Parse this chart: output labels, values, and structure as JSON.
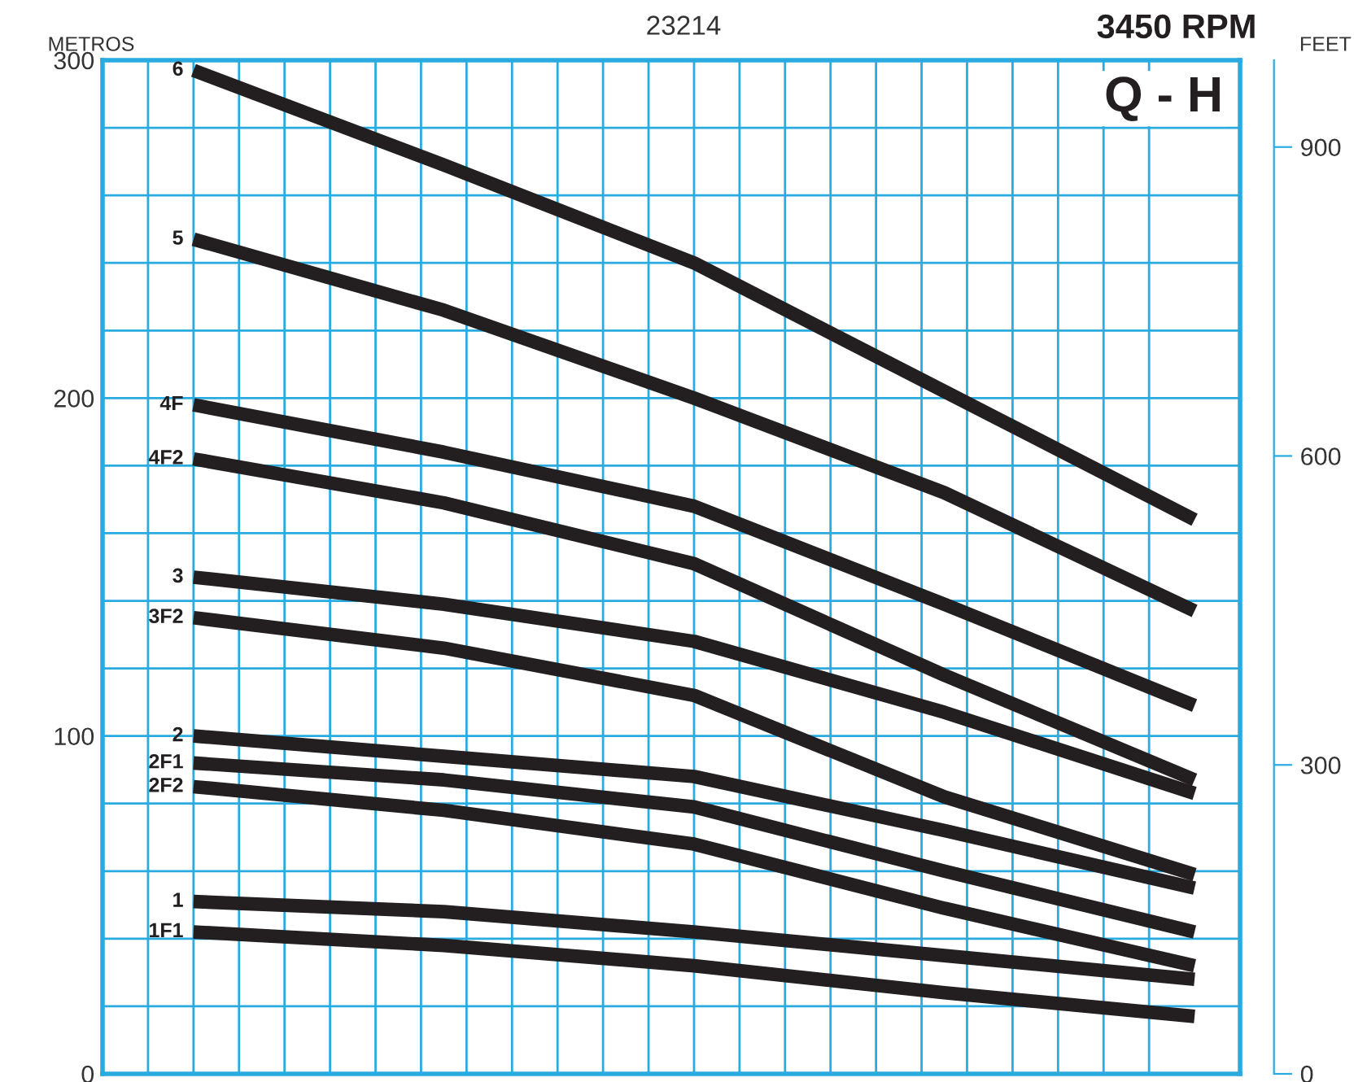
{
  "chart_data": {
    "type": "line",
    "title": "3450 RPM",
    "subtitle": "23214",
    "annotations": [
      "Q - H"
    ],
    "ylabel": "METROS",
    "y2label": "FEET",
    "categories": [
      null,
      null,
      null,
      null,
      null
    ],
    "series": [
      {
        "name": "6",
        "color": "#231f20",
        "values": [
          297,
          269,
          240,
          202,
          164
        ]
      },
      {
        "name": "5",
        "color": "#231f20",
        "values": [
          247,
          226,
          200,
          172,
          137
        ]
      },
      {
        "name": "4F",
        "color": "#231f20",
        "values": [
          198,
          184,
          168,
          139,
          109
        ]
      },
      {
        "name": "4F2",
        "color": "#231f20",
        "values": [
          182,
          169,
          151,
          118,
          87
        ]
      },
      {
        "name": "3",
        "color": "#231f20",
        "values": [
          147,
          139,
          128,
          107,
          83
        ]
      },
      {
        "name": "3F2",
        "color": "#231f20",
        "values": [
          135,
          126,
          112,
          82,
          59
        ]
      },
      {
        "name": "2",
        "color": "#231f20",
        "values": [
          100,
          94,
          88,
          72,
          55
        ]
      },
      {
        "name": "2F1",
        "color": "#231f20",
        "values": [
          92,
          87,
          79,
          60,
          42
        ]
      },
      {
        "name": "2F2",
        "color": "#231f20",
        "values": [
          85,
          78,
          68,
          49,
          32
        ]
      },
      {
        "name": "1",
        "color": "#231f20",
        "values": [
          51,
          48,
          42,
          35,
          28
        ]
      },
      {
        "name": "1F1",
        "color": "#231f20",
        "values": [
          42,
          38,
          32,
          24,
          17
        ]
      }
    ],
    "ylim": [
      0,
      300
    ],
    "yticks": [
      0,
      100,
      200,
      300
    ],
    "y2lim": [
      0,
      984.3
    ],
    "y2ticks": [
      0,
      300,
      600,
      900
    ],
    "grid": true,
    "legend": false,
    "tick_labels": "y",
    "line_style": "solid",
    "marker": "none"
  }
}
